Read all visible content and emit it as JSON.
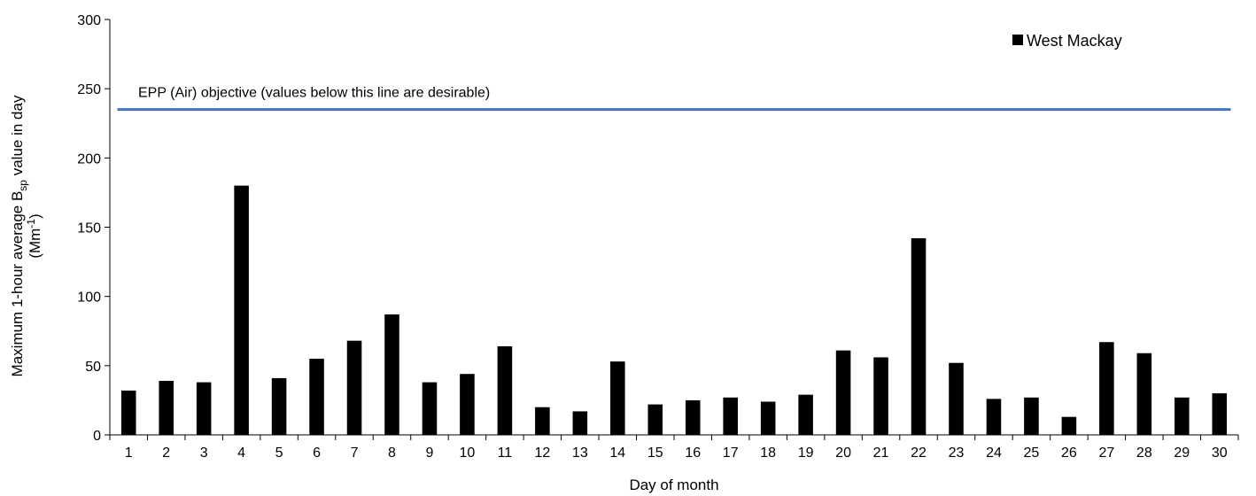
{
  "chart_data": {
    "type": "bar",
    "xlabel": "Day of month",
    "ylabel_line1_prefix": "Maximum 1-hour average B",
    "ylabel_line1_sub": "sp",
    "ylabel_line1_suffix": " value in day",
    "ylabel_line2_prefix": "(Mm",
    "ylabel_line2_sup": "-1",
    "ylabel_line2_suffix": ")",
    "ylim": [
      0,
      300
    ],
    "yticks": [
      0,
      50,
      100,
      150,
      200,
      250,
      300
    ],
    "categories": [
      "1",
      "2",
      "3",
      "4",
      "5",
      "6",
      "7",
      "8",
      "9",
      "10",
      "11",
      "12",
      "13",
      "14",
      "15",
      "16",
      "17",
      "18",
      "19",
      "20",
      "21",
      "22",
      "23",
      "24",
      "25",
      "26",
      "27",
      "28",
      "29",
      "30"
    ],
    "series": [
      {
        "name": "West Mackay",
        "color": "#000000",
        "values": [
          32,
          39,
          38,
          180,
          41,
          55,
          68,
          87,
          38,
          44,
          64,
          20,
          17,
          53,
          22,
          25,
          27,
          24,
          29,
          61,
          56,
          142,
          52,
          26,
          27,
          13,
          67,
          59,
          27,
          30
        ]
      }
    ],
    "reference_line": {
      "value": 235,
      "label": "EPP (Air) objective (values below this line are desirable)",
      "color": "#4472C4"
    },
    "legend_position": "top-right",
    "grid": false
  }
}
